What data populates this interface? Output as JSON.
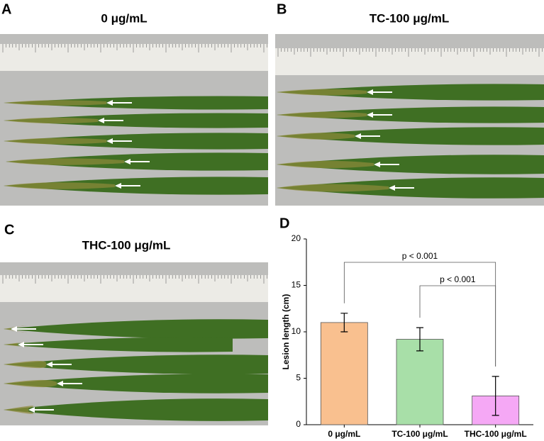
{
  "panels": [
    {
      "label": "A",
      "title": "0 μg/mL"
    },
    {
      "label": "B",
      "title": "TC-100 μg/mL"
    },
    {
      "label": "C",
      "title": "THC-100 μg/mL"
    },
    {
      "label": "D"
    }
  ],
  "chart_data": {
    "type": "bar",
    "y_label": "Lesion length (cm)",
    "categories": [
      "0 μg/mL",
      "TC-100 μg/mL",
      "THC-100 μg/mL"
    ],
    "values": [
      11,
      9.2,
      3.1
    ],
    "errors": [
      1,
      1.25,
      2.1
    ],
    "colors": [
      "#f9c08f",
      "#a8dfa8",
      "#f5a8f5"
    ],
    "ylim": [
      0,
      20
    ],
    "yticks": [
      0,
      5,
      10,
      15,
      20
    ],
    "annotations": [
      {
        "text": "p < 0.001"
      },
      {
        "text": "p < 0.001"
      }
    ]
  }
}
